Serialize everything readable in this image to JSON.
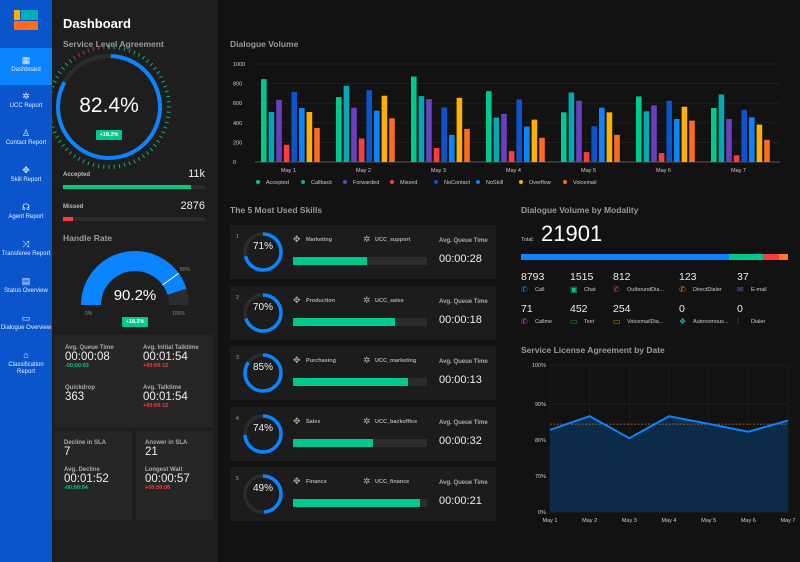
{
  "app": {
    "logo_colors": [
      "#ffb000",
      "#00b0b9",
      "#ff6b1a"
    ]
  },
  "sidebar": {
    "items": [
      {
        "label": "Dashboard",
        "icon": "grid-icon",
        "glyph": "▦",
        "active": true
      },
      {
        "label": "UCC Report",
        "icon": "network-icon",
        "glyph": "✲"
      },
      {
        "label": "Contact Report",
        "icon": "user-icon",
        "glyph": "♙"
      },
      {
        "label": "Skill Report",
        "icon": "skill-icon",
        "glyph": "✥"
      },
      {
        "label": "Agent Report",
        "icon": "headset-icon",
        "glyph": "☊"
      },
      {
        "label": "Transferee Report",
        "icon": "transfer-icon",
        "glyph": "⤨"
      },
      {
        "label": "Status Overview",
        "icon": "document-icon",
        "glyph": "▤"
      },
      {
        "label": "Dialogue Overview",
        "icon": "chat-icon",
        "glyph": "▭"
      },
      {
        "label": "Classification Report",
        "icon": "tag-icon",
        "glyph": "⌂"
      }
    ]
  },
  "left": {
    "title": "Dashboard",
    "sla": {
      "title": "Service Level Agreement",
      "value": "82.4%",
      "fraction": 0.824,
      "delta": "+18.2%"
    },
    "accepted": {
      "label": "Accepted",
      "value": "11k",
      "fraction": 0.9
    },
    "missed": {
      "label": "Missed",
      "value": "2876",
      "fraction": 0.07
    },
    "handle_rate": {
      "title": "Handle Rate",
      "value": "90.2%",
      "fraction": 0.902,
      "delta": "+18.2%",
      "min": "0%",
      "max": "100%",
      "marker": "80%",
      "marker_fraction": 0.8
    },
    "stats": [
      {
        "label": "Avg. Queue Time",
        "value": "00:00:08",
        "delta": "-00:00:03",
        "trend": "good"
      },
      {
        "label": "Avg. Initial Talktime",
        "value": "00:01:54",
        "delta": "+00:00:12",
        "trend": "bad"
      },
      {
        "label": "Quickdrop",
        "value": "363",
        "delta": "",
        "trend": ""
      },
      {
        "label": "Avg. Talktime",
        "value": "00:01:54",
        "delta": "+00:00:12",
        "trend": "bad"
      }
    ],
    "sla_card1": [
      {
        "label": "Decline in SLA",
        "value": "7",
        "delta": ""
      },
      {
        "label": "Avg. Decline",
        "value": "00:01:52",
        "delta": "-00:00:04",
        "trend": "good"
      }
    ],
    "sla_card2": [
      {
        "label": "Answer in SLA",
        "value": "21",
        "delta": ""
      },
      {
        "label": "Longest Wait",
        "value": "00:00:57",
        "delta": "+00:00:06",
        "trend": "bad"
      }
    ]
  },
  "chart_data": [
    {
      "type": "bar",
      "title": "Dialogue Volume",
      "ylim": [
        0,
        1000
      ],
      "yticks": [
        "0",
        "200",
        "400",
        "600",
        "800",
        "1000"
      ],
      "grid": true,
      "legend": "bottom",
      "categories": [
        "May 1",
        "May 2",
        "May 3",
        "May 4",
        "May 5",
        "May 6",
        "May 7"
      ],
      "series": [
        {
          "name": "Accepted",
          "color": "#00c98d",
          "values": [
            845,
            662,
            872,
            723,
            507,
            669,
            551
          ]
        },
        {
          "name": "Callback",
          "color": "#00aab4",
          "values": [
            510,
            777,
            672,
            453,
            709,
            517,
            689
          ]
        },
        {
          "name": "Forwarded",
          "color": "#6a3fc0",
          "values": [
            635,
            554,
            642,
            490,
            625,
            578,
            439
          ]
        },
        {
          "name": "Missed",
          "color": "#ff3b3b",
          "values": [
            176,
            240,
            142,
            111,
            101,
            91,
            68
          ]
        },
        {
          "name": "NoContact",
          "color": "#0a55cc",
          "values": [
            716,
            733,
            557,
            638,
            365,
            625,
            530
          ]
        },
        {
          "name": "NoSkill",
          "color": "#0a84ff",
          "values": [
            551,
            524,
            277,
            361,
            554,
            439,
            456
          ]
        },
        {
          "name": "Overflow",
          "color": "#ffb000",
          "values": [
            510,
            676,
            655,
            432,
            507,
            564,
            382
          ]
        },
        {
          "name": "Voicemail",
          "color": "#ff6b1a",
          "values": [
            348,
            446,
            338,
            247,
            277,
            422,
            226
          ]
        }
      ]
    },
    {
      "type": "area",
      "title": "Service License Agreement by Date",
      "yticks": [
        "0%",
        "70%",
        "80%",
        "90%",
        "100%"
      ],
      "grid": true,
      "color": "#0a84ff",
      "target": 84.4,
      "target_color": "#b07a2a",
      "categories": [
        "May 1",
        "May 2",
        "May 3",
        "May 4",
        "May 5",
        "May 6",
        "May 7"
      ],
      "values": [
        82.8,
        86.6,
        80.5,
        86.6,
        84.5,
        82.3,
        85.4
      ]
    }
  ],
  "skills": {
    "title": "The 5 Most Used Skills",
    "queue_label": "Avg. Queue Time",
    "items": [
      {
        "rank": "1",
        "percent": "71%",
        "fraction": 0.71,
        "name": "Marketing",
        "ucc": "UCC_support",
        "queue": "00:00:28",
        "bar": 0.55
      },
      {
        "rank": "2",
        "percent": "70%",
        "fraction": 0.7,
        "name": "Production",
        "ucc": "UCC_sales",
        "queue": "00:00:18",
        "bar": 0.76
      },
      {
        "rank": "3",
        "percent": "85%",
        "fraction": 0.85,
        "name": "Purchasing",
        "ucc": "UCC_marketing",
        "queue": "00:00:13",
        "bar": 0.86
      },
      {
        "rank": "4",
        "percent": "74%",
        "fraction": 0.74,
        "name": "Sales",
        "ucc": "UCC_backoffice",
        "queue": "00:00:32",
        "bar": 0.6
      },
      {
        "rank": "5",
        "percent": "49%",
        "fraction": 0.49,
        "name": "Finance",
        "ucc": "UCC_finance",
        "queue": "00:00:21",
        "bar": 0.95
      }
    ]
  },
  "modality": {
    "title": "Dialogue Volume by Modality",
    "total_label": "Total:",
    "total": "21901",
    "bar_segments": [
      {
        "color": "#0a84ff",
        "fraction": 0.78
      },
      {
        "color": "#00c98d",
        "fraction": 0.125
      },
      {
        "color": "#ff3b3b",
        "fraction": 0.06
      },
      {
        "color": "#ff7a1a",
        "fraction": 0.035
      }
    ],
    "items": [
      {
        "value": "8793",
        "label": "Call",
        "icon": "phone-icon",
        "glyph": "✆",
        "color": "#0a84ff"
      },
      {
        "value": "1515",
        "label": "Chat",
        "icon": "chat-icon",
        "glyph": "▣",
        "color": "#00c98d"
      },
      {
        "value": "812",
        "label": "OutboundDia...",
        "icon": "phone-outbound-icon",
        "glyph": "✆",
        "color": "#e03a3a"
      },
      {
        "value": "123",
        "label": "DirectDialer",
        "icon": "phone-dialer-icon",
        "glyph": "✆",
        "color": "#ff7a1a"
      },
      {
        "value": "37",
        "label": "E-mail",
        "icon": "mail-icon",
        "glyph": "✉",
        "color": "#7a4fd0"
      },
      {
        "value": "71",
        "label": "Callme",
        "icon": "phone-callme-icon",
        "glyph": "✆",
        "color": "#c040c0"
      },
      {
        "value": "452",
        "label": "Text",
        "icon": "sms-icon",
        "glyph": "▭",
        "color": "#1fb01f"
      },
      {
        "value": "254",
        "label": "VoicemailDia...",
        "icon": "voicemail-icon",
        "glyph": "▭",
        "color": "#d9a000"
      },
      {
        "value": "0",
        "label": "Autonomous...",
        "icon": "robot-icon",
        "glyph": "❖",
        "color": "#20b0b0"
      },
      {
        "value": "0",
        "label": "Dialer",
        "icon": "dialpad-icon",
        "glyph": "⁞",
        "color": "#0a84ff"
      }
    ]
  }
}
